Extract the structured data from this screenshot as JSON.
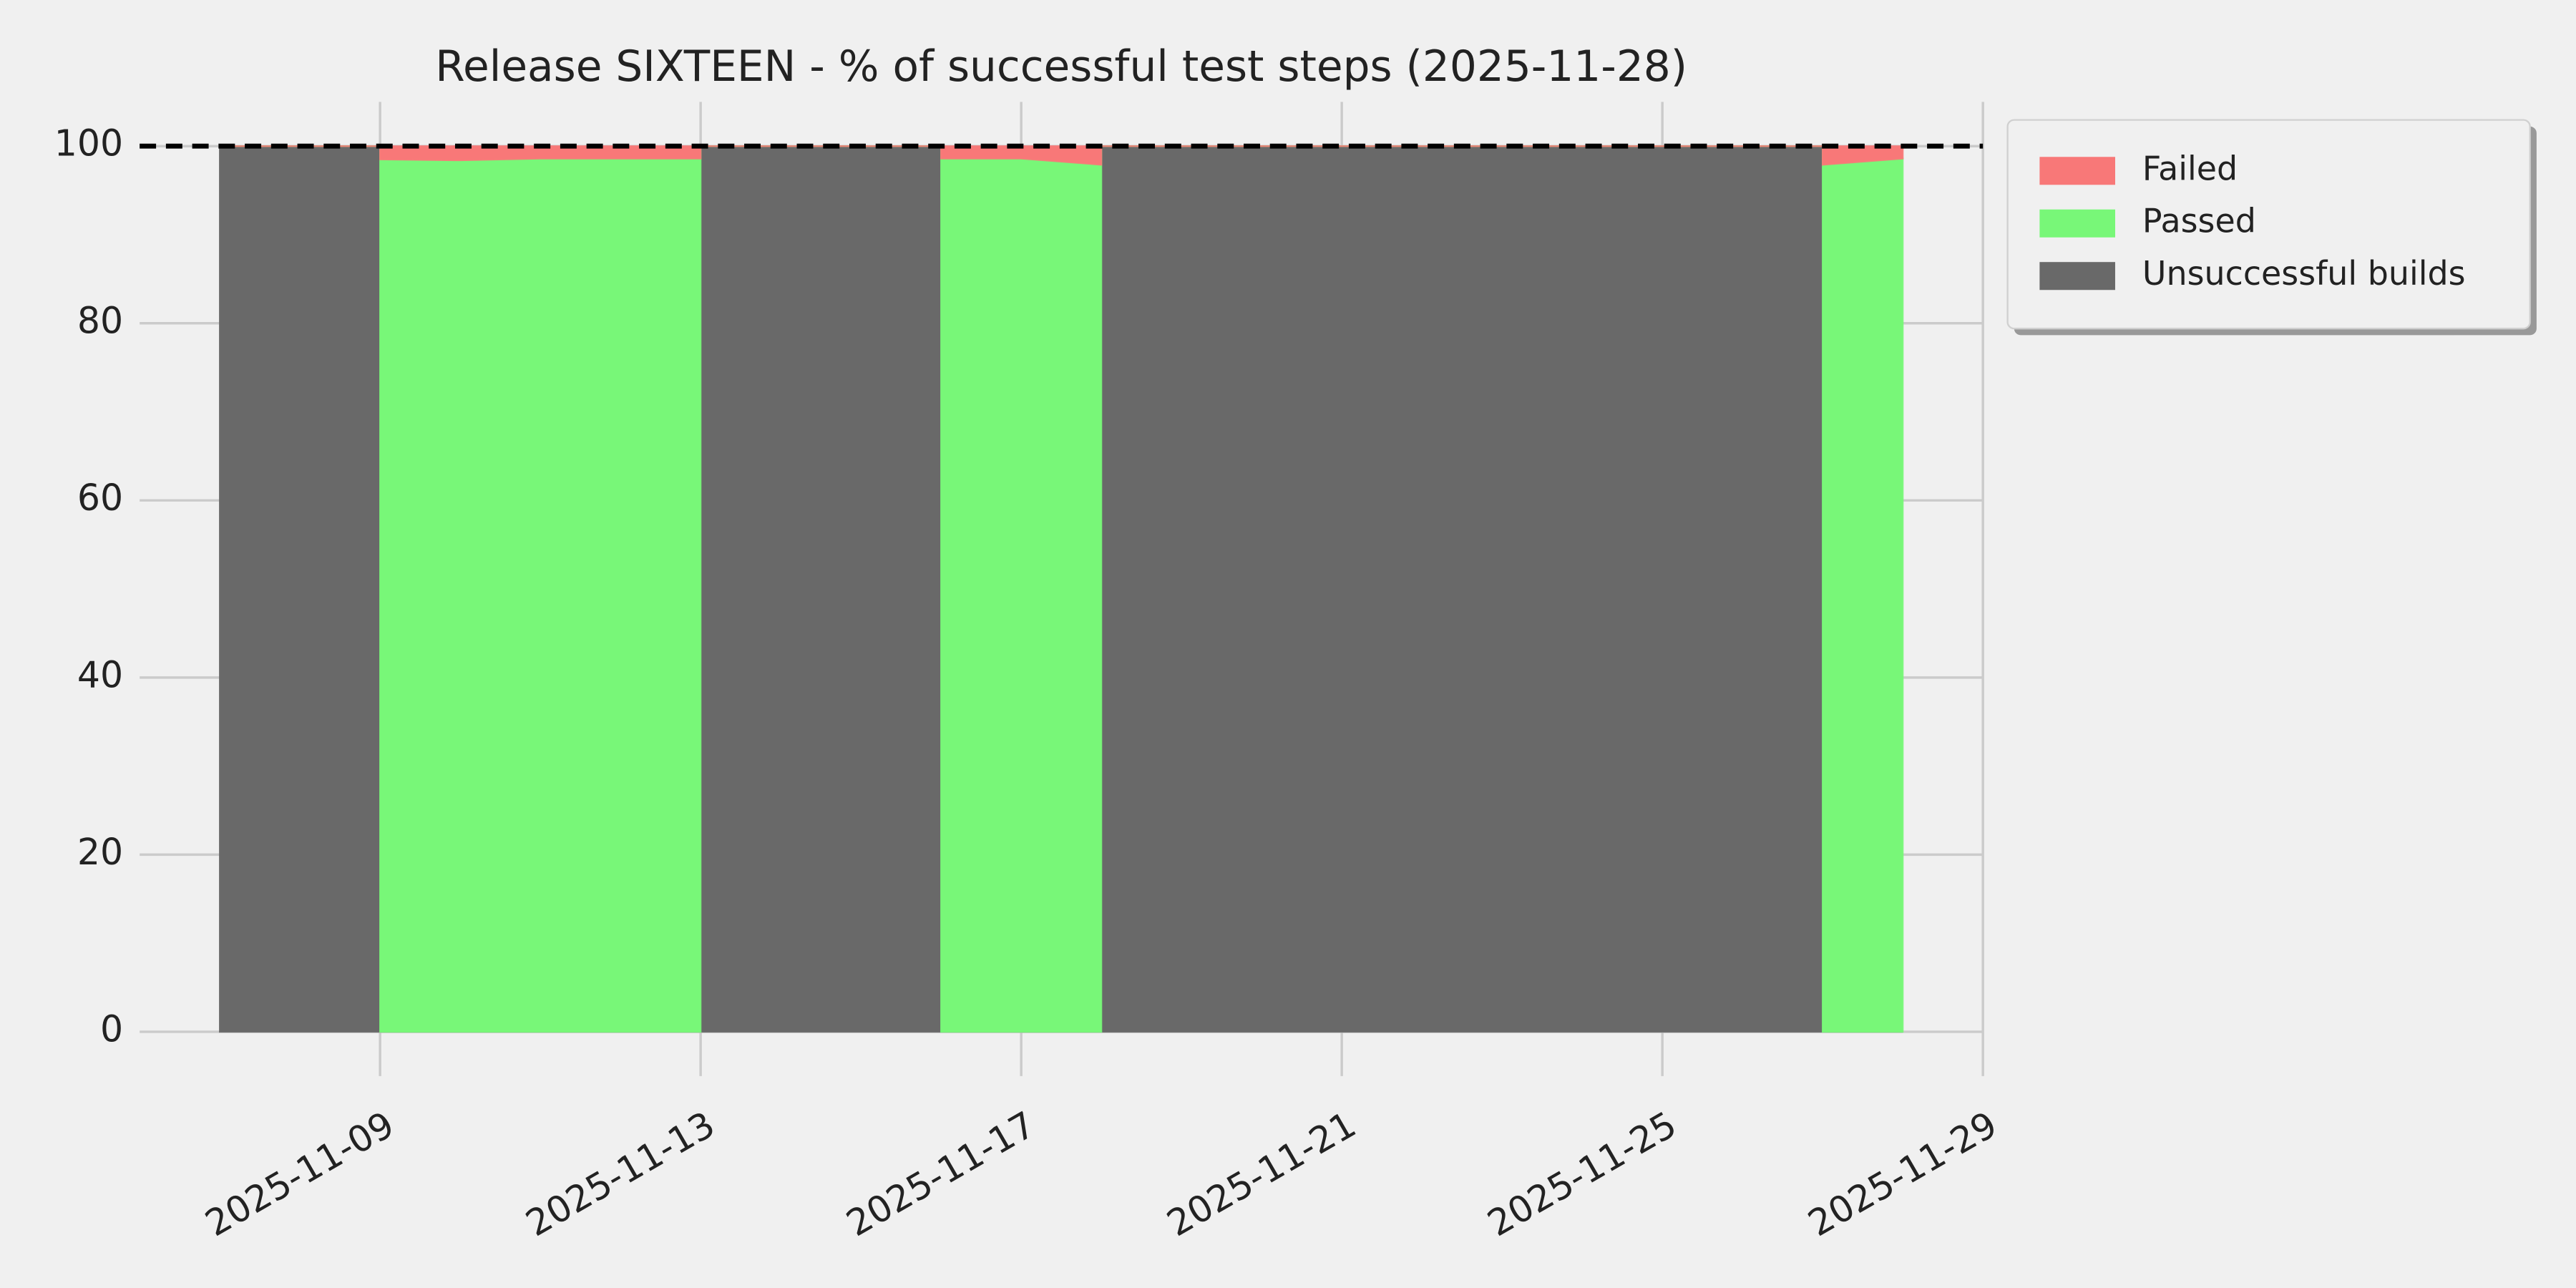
{
  "chart_data": {
    "type": "stacked-area",
    "title": "Release SIXTEEN - % of successful test steps (2025-11-28)",
    "x": [
      "2025-11-07",
      "2025-11-09",
      "2025-11-09",
      "2025-11-10",
      "2025-11-11",
      "2025-11-12",
      "2025-11-13",
      "2025-11-13",
      "2025-11-16",
      "2025-11-16",
      "2025-11-17",
      "2025-11-18",
      "2025-11-18",
      "2025-11-27",
      "2025-11-27",
      "2025-11-28"
    ],
    "series": [
      {
        "name": "Failed",
        "color": "#f87878",
        "values": [
          0,
          0,
          1.5,
          1.6,
          1.4,
          1.4,
          1.4,
          0,
          0,
          1.4,
          1.4,
          2.1,
          0,
          0,
          2.1,
          1.4
        ]
      },
      {
        "name": "Passed",
        "color": "#78f778",
        "values": [
          0,
          0,
          98.5,
          98.4,
          98.6,
          98.6,
          98.6,
          0,
          0,
          98.6,
          98.6,
          97.9,
          0,
          0,
          97.9,
          98.6
        ]
      },
      {
        "name": "Unsuccessful builds",
        "color": "#696969",
        "values": [
          100,
          100,
          0,
          0,
          0,
          0,
          0,
          100,
          100,
          0,
          0,
          0,
          100,
          100,
          0,
          0
        ]
      }
    ],
    "hline": 100,
    "xlim": [
      "2025-11-06",
      "2025-11-29"
    ],
    "xticks": [
      "2025-11-09",
      "2025-11-13",
      "2025-11-17",
      "2025-11-21",
      "2025-11-25",
      "2025-11-29"
    ],
    "ylim": [
      -5,
      105
    ],
    "yticks": [
      0,
      20,
      40,
      60,
      80,
      100
    ],
    "grid": true,
    "legend": "outside-upper-right"
  }
}
